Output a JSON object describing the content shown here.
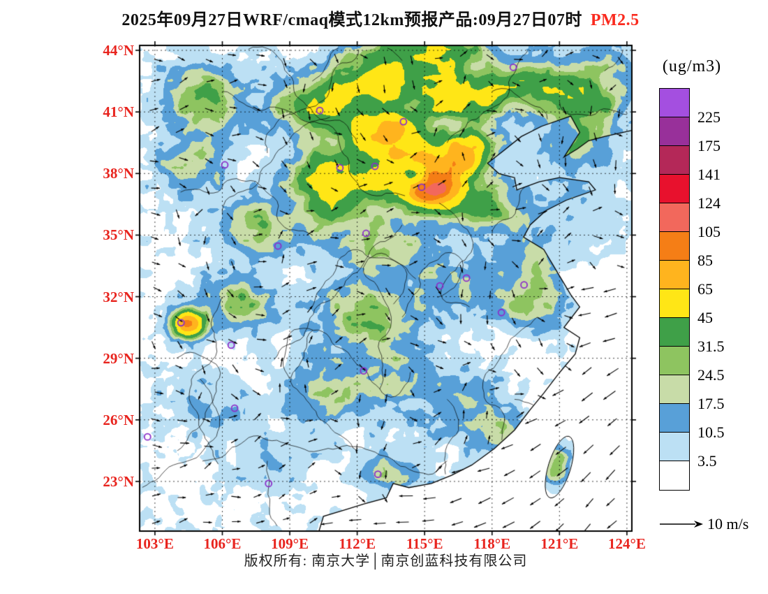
{
  "title": {
    "main": "2025年09月27日WRF/cmaq模式12km预报产品:09月27日07时",
    "pollutant": "PM2.5"
  },
  "colors": {
    "pollutant_red": "#FA2B1F",
    "axis_label_red": "#E8241E",
    "map_frame": "#000000",
    "station_ring_purple": "#8B2FC9",
    "footer_text": "#222222"
  },
  "axes": {
    "lat_labels": [
      "44°N",
      "41°N",
      "38°N",
      "35°N",
      "32°N",
      "29°N",
      "26°N",
      "23°N"
    ],
    "lon_labels": [
      "103°E",
      "106°E",
      "109°E",
      "112°E",
      "115°E",
      "118°E",
      "121°E",
      "124°E"
    ]
  },
  "legend": {
    "unit": "(ug/m3)",
    "levels_top_to_bottom": [
      "225",
      "175",
      "141",
      "124",
      "105",
      "85",
      "65",
      "45",
      "31.5",
      "24.5",
      "17.5",
      "10.5",
      "3.5"
    ],
    "colors_top_to_bottom": [
      "#A44FE0",
      "#98309A",
      "#B42858",
      "#E8112D",
      "#F2685C",
      "#F57E16",
      "#FFB41E",
      "#FFE616",
      "#3FA048",
      "#8EC460",
      "#C8DCA8",
      "#58A0D8",
      "#BCE0F4",
      "#FFFFFF"
    ]
  },
  "wind_scale": {
    "label": "10 m/s"
  },
  "footer": {
    "text": "版权所有: 南京大学│南京创蓝科技有限公司"
  },
  "map": {
    "stations_rel": [
      [
        0.759,
        0.045
      ],
      [
        0.366,
        0.134
      ],
      [
        0.536,
        0.157
      ],
      [
        0.173,
        0.246
      ],
      [
        0.407,
        0.252
      ],
      [
        0.478,
        0.249
      ],
      [
        0.573,
        0.292
      ],
      [
        0.46,
        0.387
      ],
      [
        0.281,
        0.413
      ],
      [
        0.61,
        0.495
      ],
      [
        0.664,
        0.479
      ],
      [
        0.781,
        0.493
      ],
      [
        0.735,
        0.55
      ],
      [
        0.084,
        0.571
      ],
      [
        0.186,
        0.617
      ],
      [
        0.455,
        0.67
      ],
      [
        0.193,
        0.747
      ],
      [
        0.016,
        0.806
      ],
      [
        0.262,
        0.902
      ],
      [
        0.484,
        0.883
      ]
    ]
  },
  "chart_data": {
    "type": "heatmap",
    "title": "2025年09月27日WRF/cmaq模式12km预报产品:09月27日07时 PM2.5",
    "variable": "PM2.5",
    "unit": "ug/m3",
    "x_ticks": [
      "103°E",
      "106°E",
      "109°E",
      "112°E",
      "115°E",
      "118°E",
      "121°E",
      "124°E"
    ],
    "y_ticks": [
      "44°N",
      "41°N",
      "38°N",
      "35°N",
      "32°N",
      "29°N",
      "26°N",
      "23°N"
    ],
    "color_levels": [
      3.5,
      10.5,
      17.5,
      24.5,
      31.5,
      45,
      65,
      85,
      105,
      124,
      141,
      175,
      225
    ],
    "colors_low_to_high": [
      "#FFFFFF",
      "#BCE0F4",
      "#58A0D8",
      "#C8DCA8",
      "#8EC460",
      "#3FA048",
      "#FFE616",
      "#FFB41E",
      "#F57E16",
      "#F2685C",
      "#E8112D",
      "#B42858",
      "#98309A",
      "#A44FE0"
    ],
    "legend_position": "right",
    "overlays": [
      "wind_vectors_with_10ms_reference",
      "province_boundaries_and_coastline",
      "purple_city_station_markers"
    ]
  }
}
